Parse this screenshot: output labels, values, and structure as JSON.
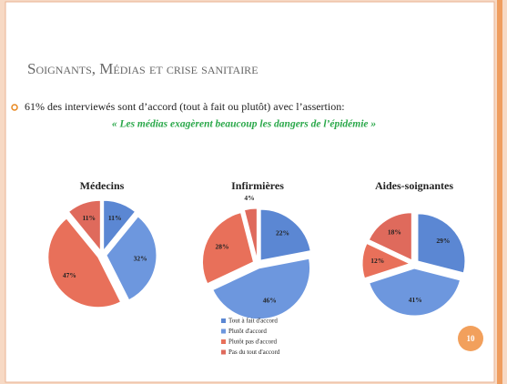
{
  "slide": {
    "title": "Soignants, Médias et crise sanitaire",
    "bullet": "61% des interviewés sont d’accord (tout à fait ou plutôt) avec l’assertion:",
    "quote": "« Les médias exagèrent beaucoup les dangers de l’épidémie »",
    "page_number": "10"
  },
  "legend": {
    "labels": [
      "Tout à fait d'accord",
      "Plutôt d'accord",
      "Plutôt pas d'accord",
      "Pas du tout d'accord"
    ],
    "colors": [
      "#5b87d3",
      "#6d97de",
      "#e8705a",
      "#df6a5c"
    ]
  },
  "chart_data": [
    {
      "type": "pie",
      "title": "Médecins",
      "values": [
        11,
        32,
        47,
        11
      ],
      "value_labels": [
        "11%",
        "32%",
        "47%",
        "11%"
      ]
    },
    {
      "type": "pie",
      "title": "Infirmières",
      "values": [
        22,
        46,
        28,
        4
      ],
      "value_labels": [
        "22%",
        "46%",
        "28%",
        "4%"
      ]
    },
    {
      "type": "pie",
      "title": "Aides-soignantes",
      "values": [
        29,
        41,
        12,
        18
      ],
      "value_labels": [
        "29%",
        "41%",
        "12%",
        "18%"
      ]
    }
  ]
}
